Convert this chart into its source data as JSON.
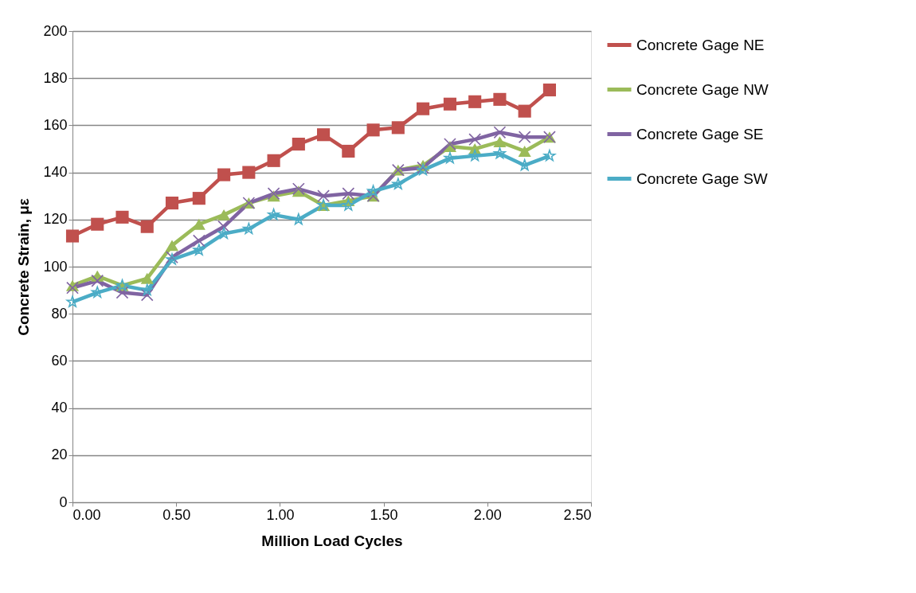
{
  "chart_data": {
    "type": "line",
    "xlabel": "Million Load Cycles",
    "ylabel": "Concrete Strain, με",
    "x": [
      0,
      0.12,
      0.24,
      0.36,
      0.48,
      0.61,
      0.73,
      0.85,
      0.97,
      1.09,
      1.21,
      1.33,
      1.45,
      1.57,
      1.69,
      1.82,
      1.94,
      2.06,
      2.18,
      2.3
    ],
    "series": [
      {
        "name": "Concrete Gage NE",
        "color": "#c0504d",
        "marker": "square",
        "values": [
          113,
          118,
          121,
          117,
          127,
          129,
          139,
          140,
          145,
          152,
          156,
          149,
          158,
          159,
          167,
          169,
          170,
          171,
          166,
          175
        ]
      },
      {
        "name": "Concrete Gage NW",
        "color": "#9bbb59",
        "marker": "triangle",
        "values": [
          92,
          96,
          92,
          95,
          109,
          118,
          122,
          127,
          130,
          132,
          126,
          128,
          130,
          141,
          143,
          151,
          150,
          153,
          149,
          155
        ]
      },
      {
        "name": "Concrete Gage SE",
        "color": "#8064a2",
        "marker": "cross",
        "values": [
          91,
          94,
          89,
          88,
          104,
          111,
          117,
          127,
          131,
          133,
          130,
          131,
          130,
          141,
          142,
          152,
          154,
          157,
          155,
          155
        ]
      },
      {
        "name": "Concrete Gage SW",
        "color": "#4bacc6",
        "marker": "star",
        "values": [
          85,
          89,
          92,
          90,
          103,
          107,
          114,
          116,
          122,
          120,
          126,
          126,
          132,
          135,
          141,
          146,
          147,
          148,
          143,
          147
        ]
      }
    ],
    "xlim": [
      0,
      2.5
    ],
    "xticks": [
      {
        "value": 0,
        "label": "0.00"
      },
      {
        "value": 0.5,
        "label": "0.50"
      },
      {
        "value": 1,
        "label": "1.00"
      },
      {
        "value": 1.5,
        "label": "1.50"
      },
      {
        "value": 2,
        "label": "2.00"
      },
      {
        "value": 2.5,
        "label": "2.50"
      }
    ],
    "ylim": [
      0,
      200
    ],
    "yticks": [
      0,
      20,
      40,
      60,
      80,
      100,
      120,
      140,
      160,
      180,
      200
    ],
    "grid": "y",
    "legend": "right",
    "line_style": "solid"
  }
}
